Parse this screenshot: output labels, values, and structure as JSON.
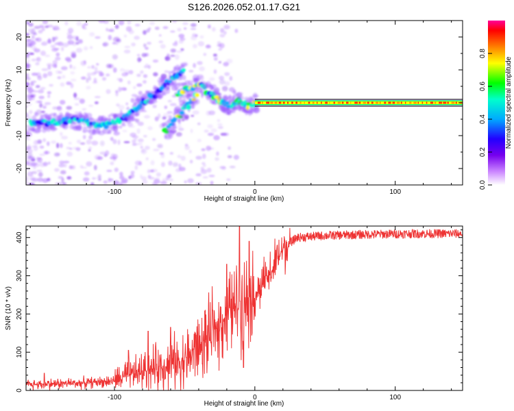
{
  "title": "S126.2026.052.01.17.G21",
  "chart_data": [
    {
      "type": "heatmap",
      "name": "spectrogram",
      "xlabel": "Height of straight line (km)",
      "ylabel": "Frequency (Hz)",
      "xlim": [
        -163,
        148
      ],
      "ylim": [
        -25,
        25
      ],
      "xticks": [
        -100,
        0,
        100
      ],
      "yticks": [
        -20,
        -10,
        0,
        10,
        20
      ],
      "description_ridges": [
        {
          "name": "main-ridge",
          "points": [
            [
              -160,
              -6
            ],
            [
              -150,
              -6
            ],
            [
              -140,
              -6
            ],
            [
              -130,
              -5
            ],
            [
              -120,
              -6
            ],
            [
              -110,
              -7
            ],
            [
              -100,
              -6
            ],
            [
              -90,
              -4
            ],
            [
              -80,
              0
            ],
            [
              -70,
              3
            ],
            [
              -60,
              7
            ],
            [
              -50,
              10
            ]
          ]
        },
        {
          "name": "upper-branch",
          "points": [
            [
              -55,
              3
            ],
            [
              -48,
              4
            ],
            [
              -42,
              5.5
            ],
            [
              -38,
              5
            ],
            [
              -34,
              3.5
            ],
            [
              -30,
              2.5
            ]
          ]
        },
        {
          "name": "lower-branch",
          "points": [
            [
              -64,
              -9
            ],
            [
              -58,
              -6
            ],
            [
              -52,
              -3
            ],
            [
              -46,
              0
            ],
            [
              -40,
              3
            ]
          ]
        },
        {
          "name": "converging-ridge",
          "points": [
            [
              -30,
              2.5
            ],
            [
              -24,
              0
            ],
            [
              -18,
              -1
            ],
            [
              -12,
              0.5
            ],
            [
              -8,
              -0.5
            ],
            [
              -4,
              -1
            ],
            [
              0,
              0
            ],
            [
              148,
              0
            ]
          ]
        }
      ]
    },
    {
      "type": "colorbar",
      "name": "amplitude-scale",
      "label": "Normalized spectral amplitude",
      "range": [
        0,
        1
      ],
      "ticks": [
        0.0,
        0.2,
        0.4,
        0.6,
        0.8
      ],
      "tick_labels": [
        "0.0",
        "0.2",
        "0.4",
        "0.6",
        "0.8"
      ]
    },
    {
      "type": "line",
      "name": "snr",
      "xlabel": "Height of straight line (km)",
      "ylabel": "SNR (10 * v/v)",
      "xlim": [
        -163,
        148
      ],
      "ylim": [
        0,
        430
      ],
      "xticks": [
        -100,
        0,
        100
      ],
      "yticks": [
        0,
        100,
        200,
        300,
        400
      ],
      "series": [
        {
          "name": "SNR",
          "color": "#ee3333",
          "trend": [
            [
              -163,
              15
            ],
            [
              -140,
              18
            ],
            [
              -120,
              20
            ],
            [
              -100,
              25
            ],
            [
              -90,
              40
            ],
            [
              -80,
              50
            ],
            [
              -70,
              60
            ],
            [
              -60,
              70
            ],
            [
              -50,
              80
            ],
            [
              -40,
              110
            ],
            [
              -30,
              150
            ],
            [
              -20,
              200
            ],
            [
              -10,
              230
            ],
            [
              0,
              250
            ],
            [
              10,
              300
            ],
            [
              20,
              370
            ],
            [
              30,
              400
            ],
            [
              50,
              405
            ],
            [
              80,
              408
            ],
            [
              110,
              410
            ],
            [
              148,
              410
            ]
          ],
          "peaks": [
            [
              -150,
              45
            ],
            [
              -90,
              105
            ],
            [
              -76,
              155
            ],
            [
              -60,
              165
            ],
            [
              -42,
              145
            ],
            [
              -30,
              210
            ],
            [
              -20,
              330
            ],
            [
              -11,
              430
            ],
            [
              -8,
              60
            ],
            [
              -4,
              390
            ],
            [
              8,
              300
            ],
            [
              16,
              380
            ]
          ]
        }
      ]
    }
  ]
}
